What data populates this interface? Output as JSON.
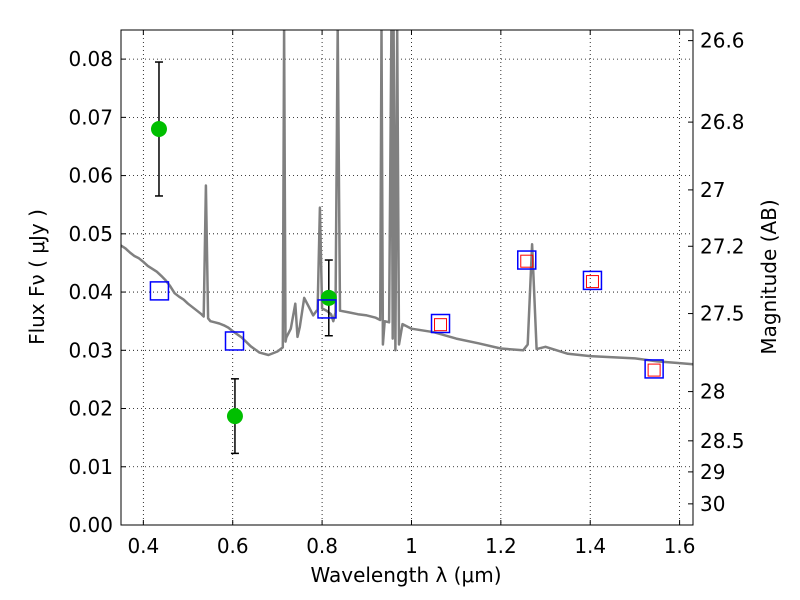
{
  "chart_data": {
    "type": "scatter",
    "title": "",
    "xlabel": "Wavelength  λ (μm)",
    "ylabel_left": "Flux  Fν  ( μJy )",
    "ylabel_right": "Magnitude (AB)",
    "xlim": [
      0.35,
      1.63
    ],
    "ylim": [
      0.0,
      0.085
    ],
    "grid": true,
    "x_ticks": [
      0.4,
      0.6,
      0.8,
      1.0,
      1.2,
      1.4,
      1.6
    ],
    "x_tick_labels": [
      "0.4",
      "0.6",
      "0.8",
      "1",
      "1.2",
      "1.4",
      "1.6"
    ],
    "y_ticks": [
      0.0,
      0.01,
      0.02,
      0.03,
      0.04,
      0.05,
      0.06,
      0.07,
      0.08
    ],
    "y_tick_labels": [
      "0.00",
      "0.01",
      "0.02",
      "0.03",
      "0.04",
      "0.05",
      "0.06",
      "0.07",
      "0.08"
    ],
    "right_ticks": [
      {
        "label": "26.6",
        "mag": 26.6
      },
      {
        "label": "26.8",
        "mag": 26.8
      },
      {
        "label": "27",
        "mag": 27.0
      },
      {
        "label": "27.2",
        "mag": 27.2
      },
      {
        "label": "27.5",
        "mag": 27.5
      },
      {
        "label": "28",
        "mag": 28.0
      },
      {
        "label": "28.5",
        "mag": 28.5
      },
      {
        "label": "29",
        "mag": 29.0
      },
      {
        "label": "30",
        "mag": 30.0
      }
    ],
    "series": [
      {
        "type": "line",
        "color": "#808080",
        "points": [
          [
            0.35,
            0.048
          ],
          [
            0.36,
            0.0475
          ],
          [
            0.37,
            0.0468
          ],
          [
            0.38,
            0.0462
          ],
          [
            0.39,
            0.0458
          ],
          [
            0.4,
            0.0452
          ],
          [
            0.41,
            0.0445
          ],
          [
            0.42,
            0.044
          ],
          [
            0.43,
            0.0435
          ],
          [
            0.44,
            0.0428
          ],
          [
            0.45,
            0.042
          ],
          [
            0.46,
            0.041
          ],
          [
            0.47,
            0.0398
          ],
          [
            0.48,
            0.0392
          ],
          [
            0.49,
            0.0387
          ],
          [
            0.5,
            0.038
          ],
          [
            0.51,
            0.0374
          ],
          [
            0.52,
            0.0368
          ],
          [
            0.53,
            0.0362
          ],
          [
            0.535,
            0.0358
          ],
          [
            0.54,
            0.0583
          ],
          [
            0.545,
            0.0355
          ],
          [
            0.55,
            0.035
          ],
          [
            0.56,
            0.0348
          ],
          [
            0.57,
            0.0346
          ],
          [
            0.58,
            0.0343
          ],
          [
            0.59,
            0.0339
          ],
          [
            0.6,
            0.0333
          ],
          [
            0.62,
            0.0322
          ],
          [
            0.64,
            0.0307
          ],
          [
            0.66,
            0.0296
          ],
          [
            0.68,
            0.0292
          ],
          [
            0.7,
            0.0298
          ],
          [
            0.712,
            0.0305
          ],
          [
            0.715,
            0.0855
          ],
          [
            0.718,
            0.0315
          ],
          [
            0.72,
            0.0322
          ],
          [
            0.73,
            0.0337
          ],
          [
            0.74,
            0.038
          ],
          [
            0.745,
            0.0323
          ],
          [
            0.75,
            0.034
          ],
          [
            0.76,
            0.039
          ],
          [
            0.77,
            0.0375
          ],
          [
            0.78,
            0.036
          ],
          [
            0.79,
            0.037
          ],
          [
            0.795,
            0.0545
          ],
          [
            0.8,
            0.0372
          ],
          [
            0.81,
            0.0368
          ],
          [
            0.82,
            0.0362
          ],
          [
            0.825,
            0.035
          ],
          [
            0.83,
            0.0365
          ],
          [
            0.835,
            0.0855
          ],
          [
            0.84,
            0.0368
          ],
          [
            0.86,
            0.0365
          ],
          [
            0.88,
            0.0362
          ],
          [
            0.9,
            0.036
          ],
          [
            0.92,
            0.0356
          ],
          [
            0.93,
            0.0352
          ],
          [
            0.933,
            0.0855
          ],
          [
            0.936,
            0.031
          ],
          [
            0.94,
            0.035
          ],
          [
            0.95,
            0.0348
          ],
          [
            0.955,
            0.0855
          ],
          [
            0.958,
            0.032
          ],
          [
            0.96,
            0.0855
          ],
          [
            0.964,
            0.03
          ],
          [
            0.968,
            0.0855
          ],
          [
            0.972,
            0.031
          ],
          [
            0.98,
            0.0345
          ],
          [
            1.0,
            0.0337
          ],
          [
            1.05,
            0.0331
          ],
          [
            1.1,
            0.032
          ],
          [
            1.15,
            0.0312
          ],
          [
            1.2,
            0.0303
          ],
          [
            1.25,
            0.03
          ],
          [
            1.26,
            0.031
          ],
          [
            1.27,
            0.0482
          ],
          [
            1.28,
            0.0302
          ],
          [
            1.3,
            0.0306
          ],
          [
            1.35,
            0.0294
          ],
          [
            1.4,
            0.029
          ],
          [
            1.45,
            0.0288
          ],
          [
            1.5,
            0.0286
          ],
          [
            1.55,
            0.0281
          ],
          [
            1.6,
            0.0278
          ],
          [
            1.63,
            0.0276
          ]
        ]
      },
      {
        "type": "points",
        "marker": "circle",
        "color": "#00bf00",
        "error_color": "#000000",
        "points": [
          {
            "x": 0.435,
            "y": 0.068,
            "yerr": 0.0115
          },
          {
            "x": 0.605,
            "y": 0.0187,
            "yerr": 0.0064
          },
          {
            "x": 0.815,
            "y": 0.039,
            "yerr": 0.0065
          }
        ]
      },
      {
        "type": "points",
        "marker": "square-open",
        "color": "#0000ff",
        "points": [
          {
            "x": 0.436,
            "y": 0.0402
          },
          {
            "x": 0.604,
            "y": 0.0316
          },
          {
            "x": 0.811,
            "y": 0.0371
          },
          {
            "x": 1.065,
            "y": 0.0346
          },
          {
            "x": 1.258,
            "y": 0.0455
          },
          {
            "x": 1.405,
            "y": 0.042
          },
          {
            "x": 1.543,
            "y": 0.0268
          }
        ]
      },
      {
        "type": "points",
        "marker": "square-open-small",
        "color": "#ff0000",
        "points": [
          {
            "x": 1.065,
            "y": 0.0344
          },
          {
            "x": 1.258,
            "y": 0.0453
          },
          {
            "x": 1.405,
            "y": 0.0418
          },
          {
            "x": 1.543,
            "y": 0.0266
          }
        ]
      }
    ]
  }
}
